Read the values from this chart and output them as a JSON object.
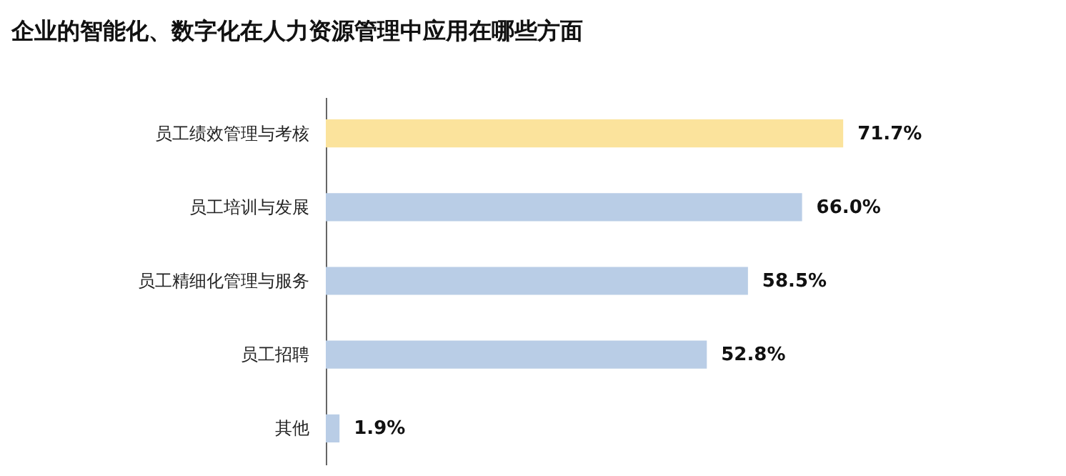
{
  "chart_data": {
    "type": "bar",
    "orientation": "horizontal",
    "title": "企业的智能化、数字化在人力资源管理中应用在哪些方面",
    "categories": [
      "员工绩效管理与考核",
      "员工培训与发展",
      "员工精细化管理与服务",
      "员工招聘",
      "其他"
    ],
    "values": [
      71.7,
      66.0,
      58.5,
      52.8,
      1.9
    ],
    "value_labels": [
      "71.7%",
      "66.0%",
      "58.5%",
      "52.8%",
      "1.9%"
    ],
    "colors": [
      "#fbe39c",
      "#b9cde6",
      "#b9cde6",
      "#b9cde6",
      "#b9cde6"
    ]
  }
}
